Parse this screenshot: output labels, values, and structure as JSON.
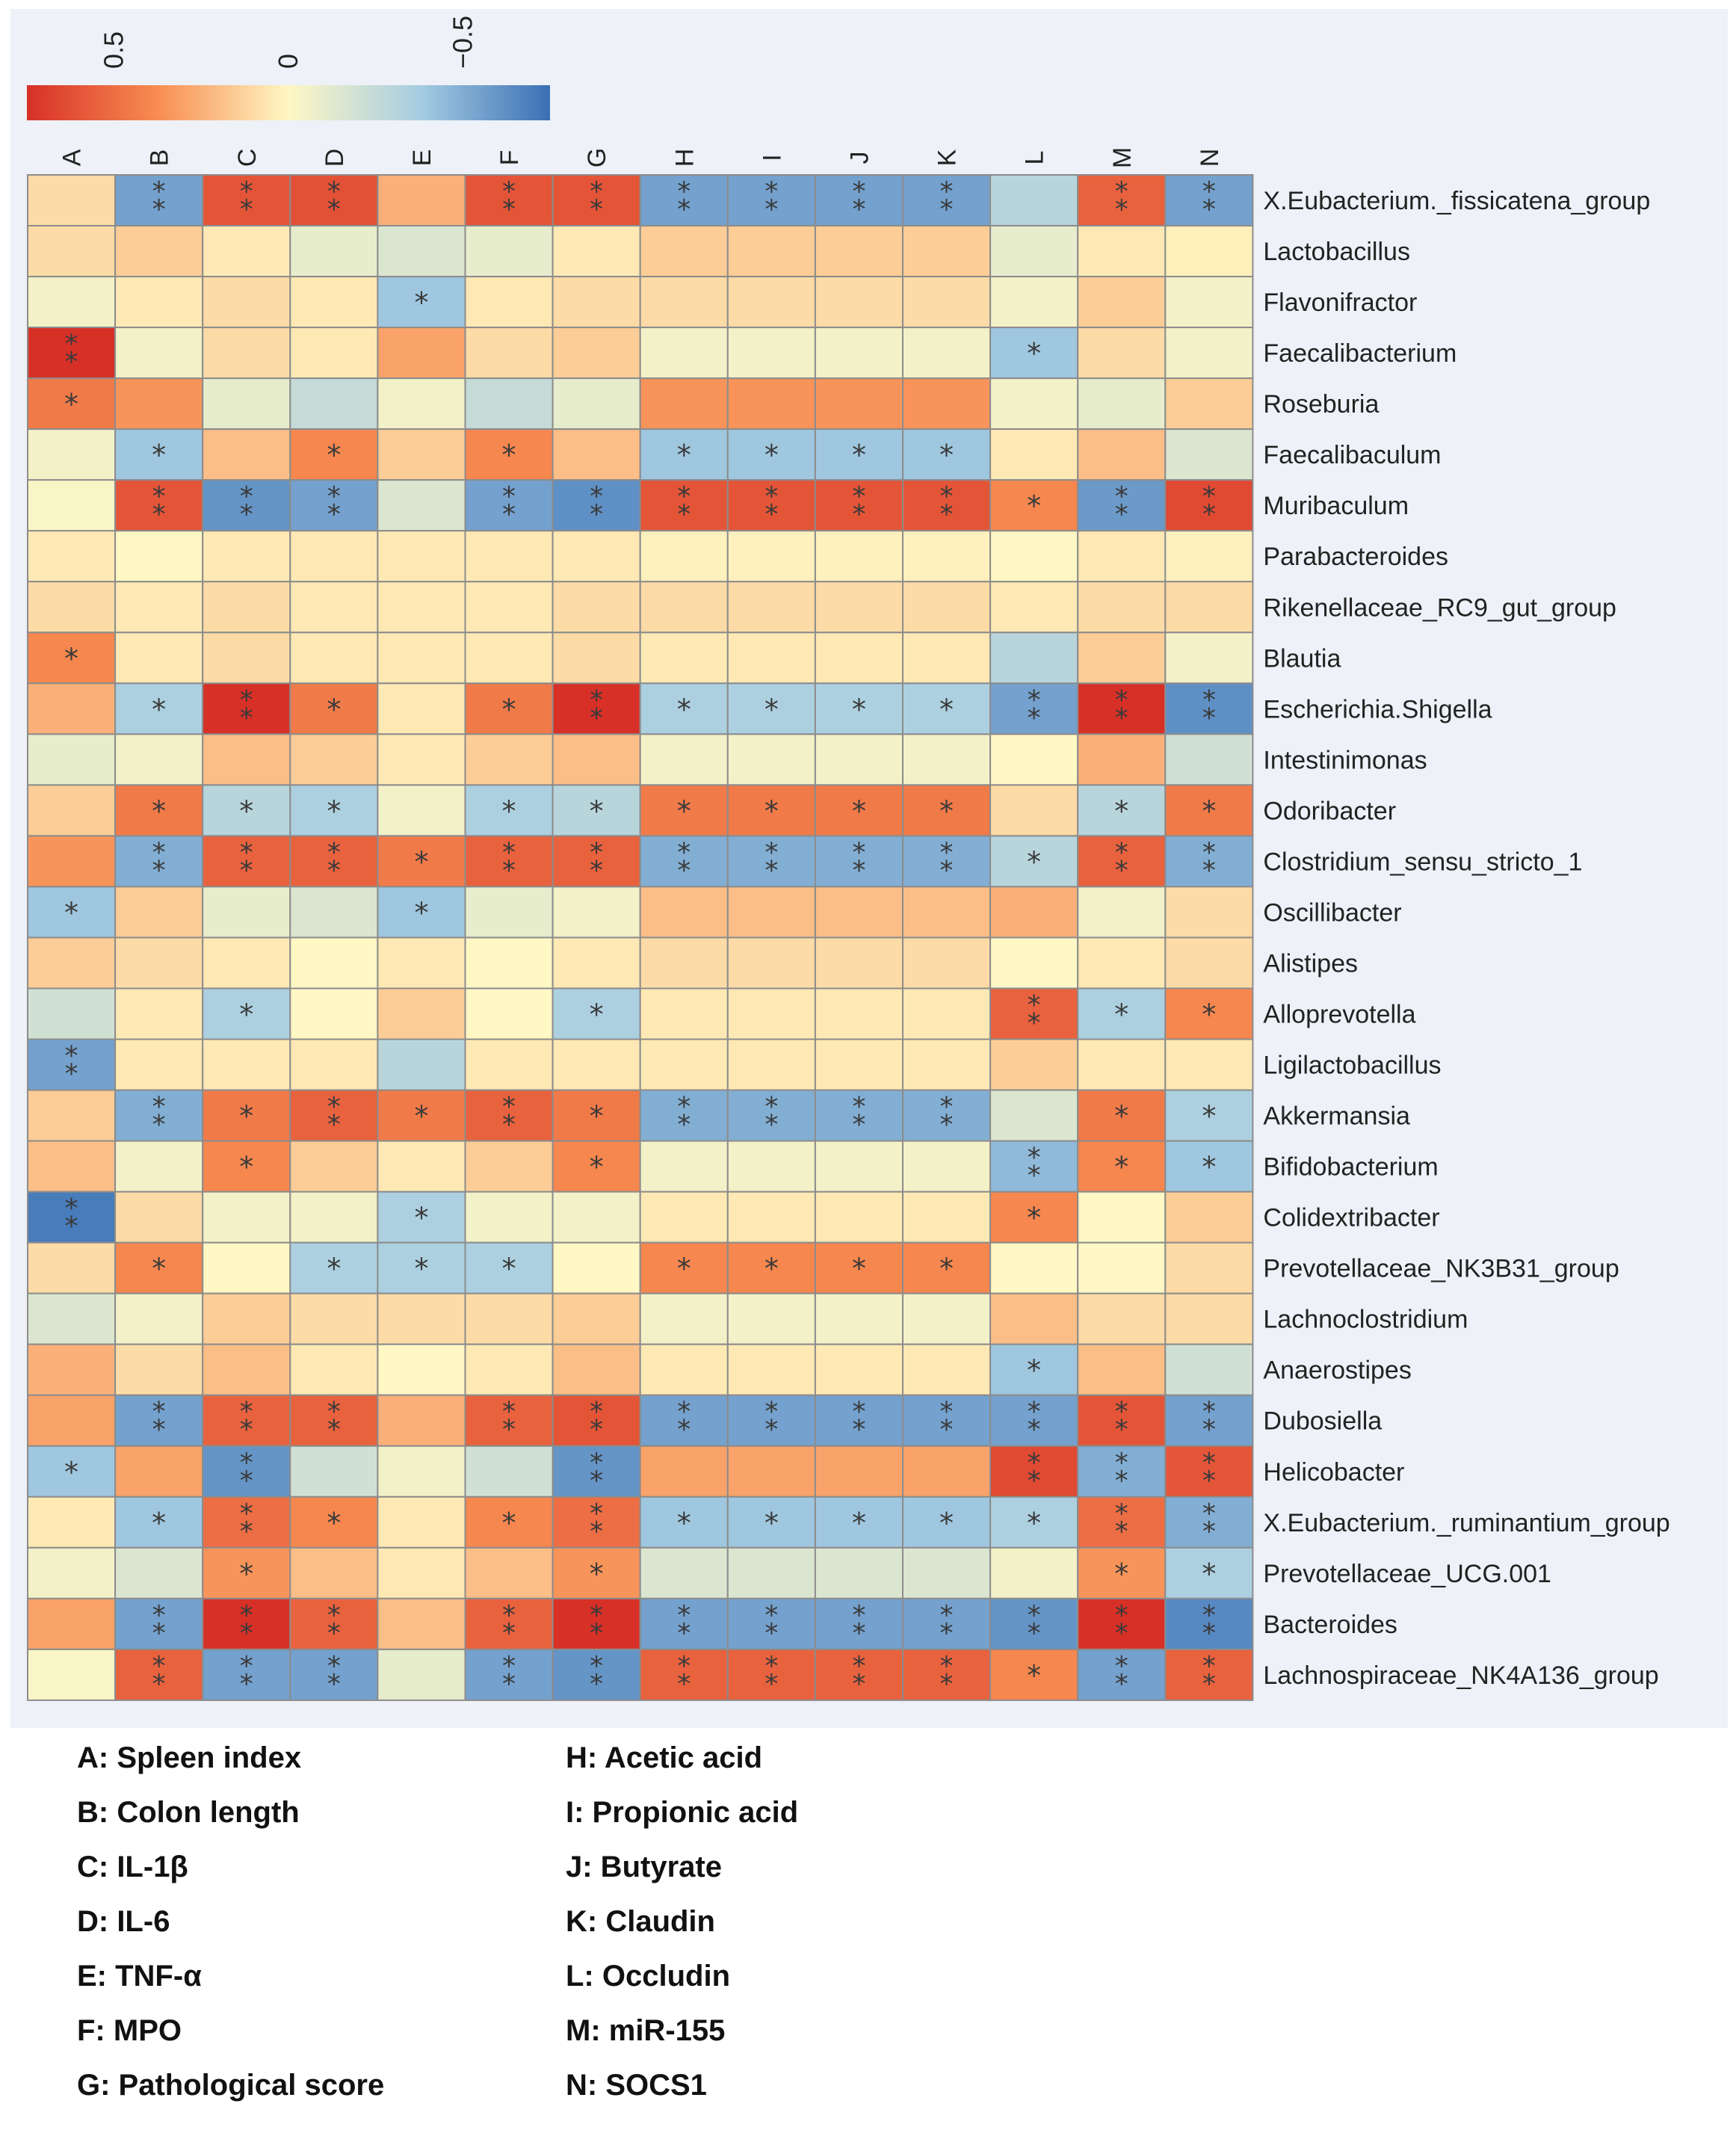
{
  "colors": {
    "high": "#d73027",
    "mid_high": "#f88d52",
    "mid": "#fff7c4",
    "mid_low": "#a6cde2",
    "low": "#3a6fb5",
    "grid": "#8c8c8c",
    "star": "#3a3a3a",
    "panel": "#eef1f7"
  },
  "chart_data": {
    "type": "heatmap",
    "color_scale": {
      "min": -0.75,
      "max": 0.75,
      "tick_labels": [
        "0.5",
        "0",
        "−0.5"
      ],
      "tick_values": [
        0.5,
        0,
        -0.5
      ],
      "orientation": "horizontal, positive on left (red), negative on right (blue)"
    },
    "columns": [
      "A",
      "B",
      "C",
      "D",
      "E",
      "F",
      "G",
      "H",
      "I",
      "J",
      "K",
      "L",
      "M",
      "N"
    ],
    "rows": [
      "X.Eubacterium._fissicatena_group",
      "Lactobacillus",
      "Flavonifractor",
      "Faecalibacterium",
      "Roseburia",
      "Faecalibaculum",
      "Muribaculum",
      "Parabacteroides",
      "Rikenellaceae_RC9_gut_group",
      "Blautia",
      "Escherichia.Shigella",
      "Intestinimonas",
      "Odoribacter",
      "Clostridium_sensu_stricto_1",
      "Oscillibacter",
      "Alistipes",
      "Alloprevotella",
      "Ligilactobacillus",
      "Akkermansia",
      "Bifidobacterium",
      "Colidextribacter",
      "Prevotellaceae_NK3B31_group",
      "Lachnoclostridium",
      "Anaerostipes",
      "Dubosiella",
      "Helicobacter",
      "X.Eubacterium._ruminantium_group",
      "Prevotellaceae_UCG.001",
      "Bacteroides",
      "Lachnospiraceae_NK4A136_group"
    ],
    "values": [
      [
        0.1,
        -0.55,
        0.6,
        0.62,
        0.25,
        0.6,
        0.6,
        -0.55,
        -0.55,
        -0.55,
        -0.55,
        -0.3,
        0.55,
        -0.55
      ],
      [
        0.1,
        0.15,
        0.05,
        -0.1,
        -0.15,
        -0.1,
        0.05,
        0.15,
        0.15,
        0.15,
        0.15,
        -0.1,
        0.05,
        0.03
      ],
      [
        -0.05,
        0.05,
        0.1,
        0.05,
        -0.4,
        0.05,
        0.1,
        0.1,
        0.1,
        0.1,
        0.1,
        -0.05,
        0.15,
        -0.05
      ],
      [
        0.75,
        -0.05,
        0.1,
        0.05,
        0.3,
        0.1,
        0.15,
        -0.05,
        -0.05,
        -0.05,
        -0.05,
        -0.4,
        0.1,
        -0.05
      ],
      [
        0.45,
        0.35,
        -0.1,
        -0.25,
        -0.05,
        -0.25,
        -0.1,
        0.35,
        0.35,
        0.35,
        0.35,
        -0.05,
        -0.1,
        0.15
      ],
      [
        -0.05,
        -0.4,
        0.2,
        0.4,
        0.15,
        0.4,
        0.2,
        -0.4,
        -0.4,
        -0.4,
        -0.4,
        0.05,
        0.2,
        -0.15
      ],
      [
        -0.02,
        0.6,
        -0.6,
        -0.55,
        -0.15,
        -0.55,
        -0.62,
        0.6,
        0.6,
        0.6,
        0.6,
        0.4,
        -0.58,
        0.65
      ],
      [
        0.05,
        0.0,
        0.05,
        0.05,
        0.05,
        0.05,
        0.05,
        0.02,
        0.02,
        0.02,
        0.02,
        0.0,
        0.05,
        0.02
      ],
      [
        0.1,
        0.05,
        0.1,
        0.05,
        0.05,
        0.05,
        0.1,
        0.1,
        0.1,
        0.1,
        0.1,
        0.05,
        0.1,
        0.1
      ],
      [
        0.4,
        0.05,
        0.1,
        0.05,
        0.05,
        0.05,
        0.1,
        0.05,
        0.05,
        0.05,
        0.05,
        -0.3,
        0.15,
        -0.05
      ],
      [
        0.25,
        -0.35,
        0.75,
        0.45,
        0.05,
        0.45,
        0.75,
        -0.35,
        -0.35,
        -0.35,
        -0.35,
        -0.55,
        0.75,
        -0.62
      ],
      [
        -0.1,
        -0.05,
        0.2,
        0.15,
        0.05,
        0.15,
        0.2,
        -0.05,
        -0.05,
        -0.05,
        -0.05,
        0.0,
        0.25,
        -0.2
      ],
      [
        0.15,
        0.45,
        -0.3,
        -0.35,
        -0.05,
        -0.35,
        -0.3,
        0.45,
        0.45,
        0.45,
        0.45,
        0.1,
        -0.3,
        0.45
      ],
      [
        0.35,
        -0.5,
        0.55,
        0.55,
        0.45,
        0.55,
        0.55,
        -0.5,
        -0.5,
        -0.5,
        -0.5,
        -0.3,
        0.55,
        -0.5
      ],
      [
        -0.4,
        0.15,
        -0.1,
        -0.15,
        -0.4,
        -0.1,
        -0.05,
        0.2,
        0.2,
        0.2,
        0.2,
        0.25,
        -0.05,
        0.1
      ],
      [
        0.15,
        0.1,
        0.05,
        0.0,
        0.05,
        0.0,
        0.05,
        0.1,
        0.1,
        0.1,
        0.1,
        0.0,
        0.05,
        0.1
      ],
      [
        -0.2,
        0.05,
        -0.35,
        0.0,
        0.15,
        0.0,
        -0.35,
        0.05,
        0.05,
        0.05,
        0.05,
        0.55,
        -0.35,
        0.4
      ],
      [
        -0.55,
        0.05,
        0.05,
        0.05,
        -0.3,
        0.05,
        0.05,
        0.05,
        0.05,
        0.05,
        0.05,
        0.15,
        0.05,
        0.05
      ],
      [
        0.15,
        -0.5,
        0.45,
        0.55,
        0.45,
        0.55,
        0.45,
        -0.5,
        -0.5,
        -0.5,
        -0.5,
        -0.15,
        0.45,
        -0.35
      ],
      [
        0.2,
        -0.05,
        0.4,
        0.15,
        0.05,
        0.15,
        0.4,
        -0.05,
        -0.05,
        -0.05,
        -0.05,
        -0.45,
        0.4,
        -0.4
      ],
      [
        -0.7,
        0.1,
        -0.05,
        -0.05,
        -0.35,
        -0.05,
        -0.05,
        0.05,
        0.05,
        0.05,
        0.05,
        0.4,
        0.0,
        0.15
      ],
      [
        0.1,
        0.4,
        0.0,
        -0.35,
        -0.35,
        -0.35,
        0.0,
        0.4,
        0.4,
        0.4,
        0.4,
        0.0,
        0.0,
        0.1
      ],
      [
        -0.15,
        -0.05,
        0.15,
        0.1,
        0.1,
        0.1,
        0.15,
        -0.05,
        -0.05,
        -0.05,
        -0.05,
        0.2,
        0.1,
        0.1
      ],
      [
        0.25,
        0.1,
        0.2,
        0.05,
        0.0,
        0.05,
        0.2,
        0.05,
        0.05,
        0.05,
        0.05,
        -0.4,
        0.2,
        -0.2
      ],
      [
        0.3,
        -0.55,
        0.55,
        0.55,
        0.25,
        0.55,
        0.6,
        -0.55,
        -0.55,
        -0.55,
        -0.55,
        -0.55,
        0.6,
        -0.55
      ],
      [
        -0.4,
        0.3,
        -0.6,
        -0.2,
        -0.05,
        -0.2,
        -0.6,
        0.3,
        0.3,
        0.3,
        0.3,
        0.65,
        -0.5,
        0.6
      ],
      [
        0.05,
        -0.4,
        0.5,
        0.4,
        0.05,
        0.4,
        0.5,
        -0.4,
        -0.4,
        -0.4,
        -0.4,
        -0.35,
        0.5,
        -0.5
      ],
      [
        -0.05,
        -0.15,
        0.35,
        0.2,
        0.05,
        0.2,
        0.35,
        -0.15,
        -0.15,
        -0.15,
        -0.15,
        -0.05,
        0.35,
        -0.35
      ],
      [
        0.3,
        -0.55,
        0.75,
        0.55,
        0.2,
        0.55,
        0.75,
        -0.55,
        -0.55,
        -0.55,
        -0.55,
        -0.6,
        0.75,
        -0.65
      ],
      [
        -0.02,
        0.55,
        -0.55,
        -0.55,
        -0.1,
        -0.55,
        -0.6,
        0.55,
        0.55,
        0.55,
        0.55,
        0.4,
        -0.55,
        0.55
      ]
    ],
    "significance": [
      [
        "",
        "**",
        "**",
        "**",
        "",
        "**",
        "**",
        "**",
        "**",
        "**",
        "**",
        "",
        "**",
        "**"
      ],
      [
        "",
        "",
        "",
        "",
        "",
        "",
        "",
        "",
        "",
        "",
        "",
        "",
        "",
        ""
      ],
      [
        "",
        "",
        "",
        "",
        "*",
        "",
        "",
        "",
        "",
        "",
        "",
        "",
        "",
        ""
      ],
      [
        "**",
        "",
        "",
        "",
        "",
        "",
        "",
        "",
        "",
        "",
        "",
        "*",
        "",
        ""
      ],
      [
        "*",
        "",
        "",
        "",
        "",
        "",
        "",
        "",
        "",
        "",
        "",
        "",
        "",
        ""
      ],
      [
        "",
        "*",
        "",
        "*",
        "",
        "*",
        "",
        "*",
        "*",
        "*",
        "*",
        "",
        "",
        ""
      ],
      [
        "",
        "**",
        "**",
        "**",
        "",
        "**",
        "**",
        "**",
        "**",
        "**",
        "**",
        "*",
        "**",
        "**"
      ],
      [
        "",
        "",
        "",
        "",
        "",
        "",
        "",
        "",
        "",
        "",
        "",
        "",
        "",
        ""
      ],
      [
        "",
        "",
        "",
        "",
        "",
        "",
        "",
        "",
        "",
        "",
        "",
        "",
        "",
        ""
      ],
      [
        "*",
        "",
        "",
        "",
        "",
        "",
        "",
        "",
        "",
        "",
        "",
        "",
        "",
        ""
      ],
      [
        "",
        "*",
        "**",
        "*",
        "",
        "*",
        "**",
        "*",
        "*",
        "*",
        "*",
        "**",
        "**",
        "**"
      ],
      [
        "",
        "",
        "",
        "",
        "",
        "",
        "",
        "",
        "",
        "",
        "",
        "",
        "",
        ""
      ],
      [
        "",
        "*",
        "*",
        "*",
        "",
        "*",
        "*",
        "*",
        "*",
        "*",
        "*",
        "",
        "*",
        "*"
      ],
      [
        "",
        "**",
        "**",
        "**",
        "*",
        "**",
        "**",
        "**",
        "**",
        "**",
        "**",
        "*",
        "**",
        "**"
      ],
      [
        "*",
        "",
        "",
        "",
        "*",
        "",
        "",
        "",
        "",
        "",
        "",
        "",
        "",
        ""
      ],
      [
        "",
        "",
        "",
        "",
        "",
        "",
        "",
        "",
        "",
        "",
        "",
        "",
        "",
        ""
      ],
      [
        "",
        "",
        "*",
        "",
        "",
        "",
        "*",
        "",
        "",
        "",
        "",
        "**",
        "*",
        "*"
      ],
      [
        "**",
        "",
        "",
        "",
        "",
        "",
        "",
        "",
        "",
        "",
        "",
        "",
        "",
        ""
      ],
      [
        "",
        "**",
        "*",
        "**",
        "*",
        "**",
        "*",
        "**",
        "**",
        "**",
        "**",
        "",
        "*",
        "*"
      ],
      [
        "",
        "",
        "*",
        "",
        "",
        "",
        "*",
        "",
        "",
        "",
        "",
        "**",
        "*",
        "*"
      ],
      [
        "**",
        "",
        "",
        "",
        "*",
        "",
        "",
        "",
        "",
        "",
        "",
        "*",
        "",
        ""
      ],
      [
        "",
        "*",
        "",
        "*",
        "*",
        "*",
        "",
        "*",
        "*",
        "*",
        "*",
        "",
        "",
        ""
      ],
      [
        "",
        "",
        "",
        "",
        "",
        "",
        "",
        "",
        "",
        "",
        "",
        "",
        "",
        ""
      ],
      [
        "",
        "",
        "",
        "",
        "",
        "",
        "",
        "",
        "",
        "",
        "",
        "*",
        "",
        ""
      ],
      [
        "",
        "**",
        "**",
        "**",
        "",
        "**",
        "**",
        "**",
        "**",
        "**",
        "**",
        "**",
        "**",
        "**"
      ],
      [
        "*",
        "",
        "**",
        "",
        "",
        "",
        "**",
        "",
        "",
        "",
        "",
        "**",
        "**",
        "**"
      ],
      [
        "",
        "*",
        "**",
        "*",
        "",
        "*",
        "**",
        "*",
        "*",
        "*",
        "*",
        "*",
        "**",
        "**"
      ],
      [
        "",
        "",
        "*",
        "",
        "",
        "",
        "*",
        "",
        "",
        "",
        "",
        "",
        "*",
        "*"
      ],
      [
        "",
        "**",
        "**",
        "**",
        "",
        "**",
        "**",
        "**",
        "**",
        "**",
        "**",
        "**",
        "**",
        "**"
      ],
      [
        "",
        "**",
        "**",
        "**",
        "",
        "**",
        "**",
        "**",
        "**",
        "**",
        "**",
        "*",
        "**",
        "**"
      ]
    ]
  },
  "legend": [
    {
      "key": "A",
      "label": "A: Spleen index"
    },
    {
      "key": "B",
      "label": "B: Colon length"
    },
    {
      "key": "C",
      "label": "C: IL-1β"
    },
    {
      "key": "D",
      "label": "D: IL-6"
    },
    {
      "key": "E",
      "label": "E: TNF-α"
    },
    {
      "key": "F",
      "label": "F: MPO"
    },
    {
      "key": "G",
      "label": "G: Pathological score"
    },
    {
      "key": "H",
      "label": "H: Acetic acid"
    },
    {
      "key": "I",
      "label": "I: Propionic acid"
    },
    {
      "key": "J",
      "label": "J: Butyrate"
    },
    {
      "key": "K",
      "label": "K: Claudin"
    },
    {
      "key": "L",
      "label": "L: Occludin"
    },
    {
      "key": "M",
      "label": "M: miR-155"
    },
    {
      "key": "N",
      "label": "N: SOCS1"
    }
  ]
}
